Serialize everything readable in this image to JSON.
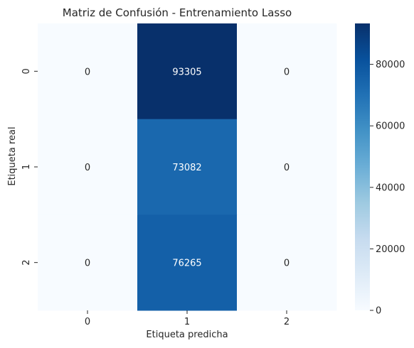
{
  "chart_data": {
    "type": "heatmap",
    "title": "Matriz de Confusión - Entrenamiento Lasso",
    "xlabel": "Etiqueta predicha",
    "ylabel": "Etiqueta real",
    "x_categories": [
      "0",
      "1",
      "2"
    ],
    "y_categories": [
      "0",
      "1",
      "2"
    ],
    "values": [
      [
        0,
        93305,
        0
      ],
      [
        0,
        73082,
        0
      ],
      [
        0,
        76265,
        0
      ]
    ],
    "colormap": "Blues",
    "color_range": [
      0,
      93305
    ],
    "colorbar_ticks": [
      "0",
      "20000",
      "40000",
      "60000",
      "80000"
    ],
    "colorbar_tick_values": [
      0,
      20000,
      40000,
      60000,
      80000
    ],
    "text_color_dark": "#262626",
    "text_color_light": "#ffffff"
  }
}
